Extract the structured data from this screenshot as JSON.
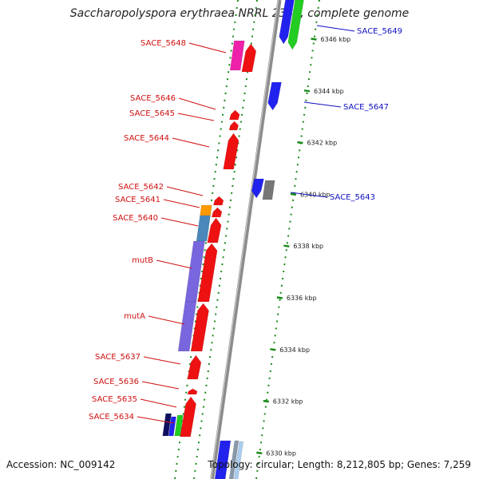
{
  "title": "Saccharopolyspora erythraea NRRL 2338, complete genome",
  "accession": "Accession: NC_009142",
  "topology": "Topology: circular; Length: 8,212,805 bp; Genes: 7,259",
  "colors": {
    "backbone": "#8c8c8c",
    "tick_green": "#1a8a1a",
    "label_red": "#d01010",
    "label_blue": "#1010c0",
    "gene_red": "#ee1111",
    "gene_blue": "#2222ee",
    "gene_green": "#22cc22",
    "gene_pink": "#ee22aa",
    "gene_purple": "#7766dd",
    "gene_steel": "#4a88bb",
    "gene_orange": "#ff9900",
    "gene_gray": "#777777"
  },
  "kbp_labels": [
    {
      "name": "kbp-6346",
      "text": "6346 kbp",
      "kbp": 6346
    },
    {
      "name": "kbp-6344",
      "text": "6344 kbp",
      "kbp": 6344
    },
    {
      "name": "kbp-6342",
      "text": "6342 kbp",
      "kbp": 6342
    },
    {
      "name": "kbp-6340",
      "text": "6340 kbp",
      "kbp": 6340
    },
    {
      "name": "kbp-6338",
      "text": "6338 kbp",
      "kbp": 6338
    },
    {
      "name": "kbp-6336",
      "text": "6336 kbp",
      "kbp": 6336
    },
    {
      "name": "kbp-6334",
      "text": "6334 kbp",
      "kbp": 6334
    },
    {
      "name": "kbp-6332",
      "text": "6332 kbp",
      "kbp": 6332
    },
    {
      "name": "kbp-6330",
      "text": "6330 kbp",
      "kbp": 6330
    }
  ],
  "gene_labels": [
    {
      "text": "SACE_5648",
      "side": "left"
    },
    {
      "text": "SACE_5646",
      "side": "left"
    },
    {
      "text": "SACE_5645",
      "side": "left"
    },
    {
      "text": "SACE_5644",
      "side": "left"
    },
    {
      "text": "SACE_5642",
      "side": "left"
    },
    {
      "text": "SACE_5641",
      "side": "left"
    },
    {
      "text": "SACE_5640",
      "side": "left"
    },
    {
      "text": "mutB",
      "side": "left"
    },
    {
      "text": "mutA",
      "side": "left"
    },
    {
      "text": "SACE_5637",
      "side": "left"
    },
    {
      "text": "SACE_5636",
      "side": "left"
    },
    {
      "text": "SACE_5635",
      "side": "left"
    },
    {
      "text": "SACE_5634",
      "side": "left"
    },
    {
      "text": "SACE_5649",
      "side": "right"
    },
    {
      "text": "SACE_5647",
      "side": "right"
    },
    {
      "text": "SACE_5643",
      "side": "right"
    }
  ]
}
